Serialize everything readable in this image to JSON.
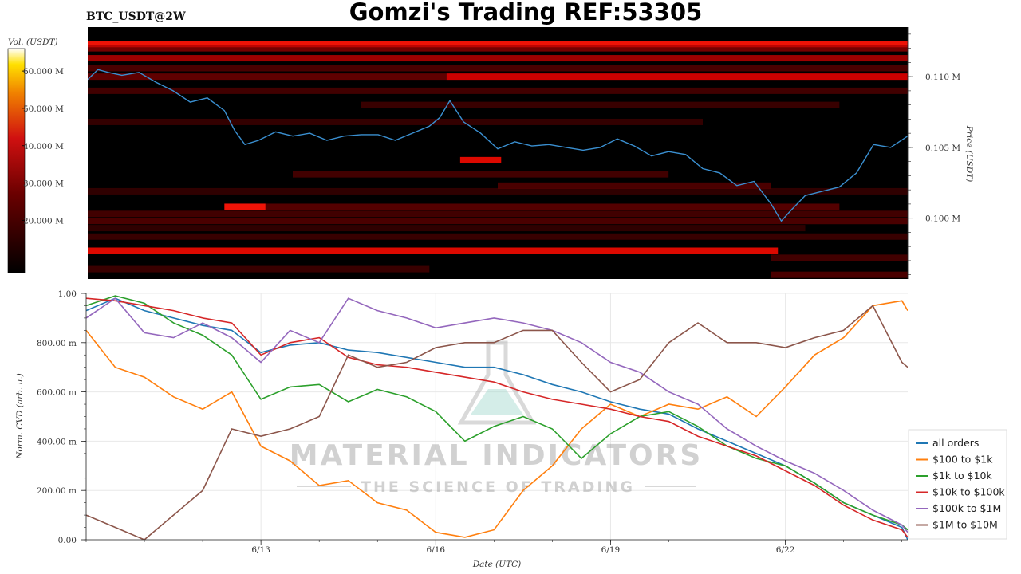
{
  "header": {
    "title": "Gomzi's Trading REF:53305",
    "pair": "BTC_USDT@2W"
  },
  "watermark": {
    "line1": "MATERIAL INDICATORS",
    "line2": "THE SCIENCE OF TRADING"
  },
  "colors": {
    "price_line": "#3a8fd0",
    "heatmap_bg": "#000000",
    "heat_low": "#3a0000",
    "heat_high": "#ffffff"
  },
  "chart_data": [
    {
      "type": "heatmap",
      "name": "orderbook-heatmap",
      "colorbar": {
        "label": "Vol. (USDT)",
        "ticks": [
          "20.000 M",
          "30.000 M",
          "40.000 M",
          "50.000 M",
          "60.000 M"
        ],
        "tick_values": [
          20,
          30,
          40,
          50,
          60
        ],
        "range": [
          6,
          66
        ],
        "colormap": "black-red-yellow-white"
      },
      "price_axis": {
        "label": "Price (USDT)",
        "ticks": [
          "0.100 M",
          "0.105 M",
          "0.110 M"
        ],
        "tick_values": [
          100000,
          105000,
          110000
        ],
        "range": [
          95700,
          113500
        ]
      },
      "x_range": [
        0,
        24
      ],
      "liquidity_bands": [
        {
          "price": 112300,
          "x0": 0,
          "x1": 24,
          "intensity": 0.95
        },
        {
          "price": 112000,
          "x0": 0,
          "x1": 24,
          "intensity": 0.55
        },
        {
          "price": 111300,
          "x0": 0,
          "x1": 24,
          "intensity": 0.7
        },
        {
          "price": 110600,
          "x0": 0,
          "x1": 24,
          "intensity": 0.35
        },
        {
          "price": 110000,
          "x0": 10.5,
          "x1": 24,
          "intensity": 0.85
        },
        {
          "price": 110000,
          "x0": 0,
          "x1": 10.5,
          "intensity": 0.45
        },
        {
          "price": 109000,
          "x0": 0,
          "x1": 24,
          "intensity": 0.3
        },
        {
          "price": 108000,
          "x0": 8,
          "x1": 22,
          "intensity": 0.25
        },
        {
          "price": 106800,
          "x0": 0,
          "x1": 18,
          "intensity": 0.22
        },
        {
          "price": 104100,
          "x0": 10.9,
          "x1": 12.1,
          "intensity": 0.9
        },
        {
          "price": 103100,
          "x0": 6,
          "x1": 17,
          "intensity": 0.3
        },
        {
          "price": 102300,
          "x0": 12,
          "x1": 20,
          "intensity": 0.35
        },
        {
          "price": 101900,
          "x0": 0,
          "x1": 24,
          "intensity": 0.2
        },
        {
          "price": 100800,
          "x0": 4,
          "x1": 22,
          "intensity": 0.4
        },
        {
          "price": 100800,
          "x0": 4,
          "x1": 5.2,
          "intensity": 0.95
        },
        {
          "price": 100300,
          "x0": 0,
          "x1": 24,
          "intensity": 0.3
        },
        {
          "price": 99800,
          "x0": 0,
          "x1": 24,
          "intensity": 0.35
        },
        {
          "price": 99300,
          "x0": 0,
          "x1": 21,
          "intensity": 0.2
        },
        {
          "price": 98700,
          "x0": 0,
          "x1": 24,
          "intensity": 0.25
        },
        {
          "price": 97700,
          "x0": 0,
          "x1": 20.2,
          "intensity": 0.9
        },
        {
          "price": 97200,
          "x0": 20,
          "x1": 24,
          "intensity": 0.3
        },
        {
          "price": 96400,
          "x0": 0,
          "x1": 10,
          "intensity": 0.25
        },
        {
          "price": 96000,
          "x0": 20,
          "x1": 24,
          "intensity": 0.35
        }
      ],
      "price_series": {
        "name": "price",
        "x": [
          0,
          0.3,
          0.6,
          1,
          1.5,
          2,
          2.5,
          3,
          3.5,
          4,
          4.3,
          4.6,
          5,
          5.5,
          6,
          6.5,
          7,
          7.5,
          8,
          8.5,
          9,
          9.5,
          10,
          10.3,
          10.6,
          11,
          11.5,
          12,
          12.5,
          13,
          13.5,
          14,
          14.5,
          15,
          15.5,
          16,
          16.5,
          17,
          17.5,
          18,
          18.5,
          19,
          19.5,
          20,
          20.3,
          20.6,
          21,
          21.5,
          22,
          22.5,
          23,
          23.5,
          24
        ],
        "values": [
          109800,
          110500,
          110300,
          110100,
          110300,
          109600,
          109000,
          108200,
          108500,
          107600,
          106200,
          105200,
          105500,
          106100,
          105800,
          106000,
          105500,
          105800,
          105900,
          105900,
          105500,
          106000,
          106500,
          107100,
          108300,
          106800,
          106000,
          104900,
          105400,
          105100,
          105200,
          105000,
          104800,
          105000,
          105600,
          105100,
          104400,
          104700,
          104500,
          103500,
          103200,
          102300,
          102600,
          101000,
          99800,
          100600,
          101600,
          101900,
          102200,
          103200,
          105200,
          105000,
          105800
        ]
      }
    },
    {
      "type": "line",
      "name": "norm-cvd",
      "ylabel": "Norm. CVD (arb. u.)",
      "xlabel": "Date (UTC)",
      "ylim": [
        0,
        1
      ],
      "yticks": [
        "0.00",
        "200.00 m",
        "400.00 m",
        "600.00 m",
        "800.00 m",
        "1.00"
      ],
      "ytick_values": [
        0,
        0.2,
        0.4,
        0.6,
        0.8,
        1.0
      ],
      "xticks": [
        "6/13",
        "6/16",
        "6/19",
        "6/22"
      ],
      "xtick_values": [
        3,
        6,
        9,
        12
      ],
      "x_range": [
        0,
        14.1
      ],
      "x": [
        0,
        0.5,
        1,
        1.5,
        2,
        2.5,
        3,
        3.5,
        4,
        4.5,
        5,
        5.5,
        6,
        6.5,
        7,
        7.5,
        8,
        8.5,
        9,
        9.5,
        10,
        10.5,
        11,
        11.5,
        12,
        12.5,
        13,
        13.5,
        14,
        14.1
      ],
      "series": [
        {
          "name": "all orders",
          "color": "#1f77b4",
          "values": [
            0.93,
            0.98,
            0.93,
            0.9,
            0.87,
            0.85,
            0.76,
            0.79,
            0.8,
            0.77,
            0.76,
            0.74,
            0.72,
            0.7,
            0.7,
            0.67,
            0.63,
            0.6,
            0.56,
            0.53,
            0.51,
            0.45,
            0.4,
            0.35,
            0.3,
            0.23,
            0.15,
            0.1,
            0.05,
            0.0
          ]
        },
        {
          "name": "$100 to $1k",
          "color": "#ff7f0e",
          "values": [
            0.85,
            0.7,
            0.66,
            0.58,
            0.53,
            0.6,
            0.38,
            0.32,
            0.22,
            0.24,
            0.15,
            0.12,
            0.03,
            0.01,
            0.04,
            0.2,
            0.3,
            0.45,
            0.55,
            0.5,
            0.55,
            0.53,
            0.58,
            0.5,
            0.62,
            0.75,
            0.82,
            0.95,
            0.97,
            0.93
          ]
        },
        {
          "name": "$1k to $10k",
          "color": "#2ca02c",
          "values": [
            0.95,
            0.99,
            0.96,
            0.88,
            0.83,
            0.75,
            0.57,
            0.62,
            0.63,
            0.56,
            0.61,
            0.58,
            0.52,
            0.4,
            0.46,
            0.5,
            0.45,
            0.33,
            0.43,
            0.5,
            0.52,
            0.46,
            0.38,
            0.33,
            0.3,
            0.23,
            0.15,
            0.1,
            0.06,
            0.04
          ]
        },
        {
          "name": "$10k to $100k",
          "color": "#d62728",
          "values": [
            0.98,
            0.97,
            0.95,
            0.93,
            0.9,
            0.88,
            0.75,
            0.8,
            0.82,
            0.74,
            0.71,
            0.7,
            0.68,
            0.66,
            0.64,
            0.6,
            0.57,
            0.55,
            0.53,
            0.5,
            0.48,
            0.42,
            0.38,
            0.34,
            0.28,
            0.22,
            0.14,
            0.08,
            0.04,
            0.01
          ]
        },
        {
          "name": "$100k to $1M",
          "color": "#9467bd",
          "values": [
            0.9,
            0.98,
            0.84,
            0.82,
            0.88,
            0.82,
            0.72,
            0.85,
            0.8,
            0.98,
            0.93,
            0.9,
            0.86,
            0.88,
            0.9,
            0.88,
            0.85,
            0.8,
            0.72,
            0.68,
            0.6,
            0.55,
            0.45,
            0.38,
            0.32,
            0.27,
            0.2,
            0.12,
            0.06,
            0.03
          ]
        },
        {
          "name": "$1M to $10M",
          "color": "#8c564b",
          "values": [
            0.1,
            0.05,
            0.0,
            0.1,
            0.2,
            0.45,
            0.42,
            0.45,
            0.5,
            0.75,
            0.7,
            0.72,
            0.78,
            0.8,
            0.8,
            0.85,
            0.85,
            0.72,
            0.6,
            0.65,
            0.8,
            0.88,
            0.8,
            0.8,
            0.78,
            0.82,
            0.85,
            0.95,
            0.72,
            0.7
          ]
        }
      ]
    }
  ]
}
